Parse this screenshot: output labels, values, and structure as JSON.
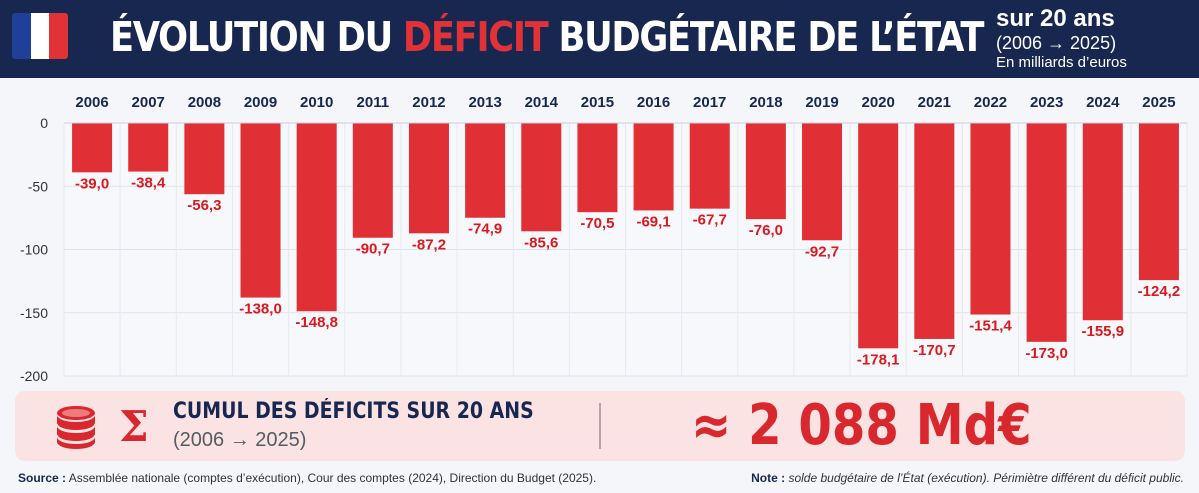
{
  "header": {
    "title_prefix": "ÉVOLUTION DU ",
    "title_highlight": "DÉFICIT",
    "title_suffix": " BUDGÉTAIRE DE L’ÉTAT",
    "side_line1": "sur 20 ans",
    "side_line2": "(2006 → 2025)",
    "side_line3": "En milliards d’euros",
    "flag_colors": [
      "#1f3f99",
      "#ffffff",
      "#e03237"
    ]
  },
  "chart_data": {
    "type": "bar",
    "categories": [
      "2006",
      "2007",
      "2008",
      "2009",
      "2010",
      "2011",
      "2012",
      "2013",
      "2014",
      "2015",
      "2016",
      "2017",
      "2018",
      "2019",
      "2020",
      "2021",
      "2022",
      "2023",
      "2024",
      "2025"
    ],
    "values": [
      -39.0,
      -38.4,
      -56.3,
      -138.0,
      -148.8,
      -90.7,
      -87.2,
      -74.9,
      -85.6,
      -70.5,
      -69.1,
      -67.7,
      -76.0,
      -92.7,
      -178.1,
      -170.7,
      -151.4,
      -173.0,
      -155.9,
      -124.2
    ],
    "data_labels": [
      "-39,0",
      "-38,4",
      "-56,3",
      "-138,0",
      "-148,8",
      "-90,7",
      "-87,2",
      "-74,9",
      "-85,6",
      "-70,5",
      "-69,1",
      "-67,7",
      "-76,0",
      "-92,7",
      "-178,1",
      "-170,7",
      "-151,4",
      "-173,0",
      "-155,9",
      "-124,2"
    ],
    "y_ticks": [
      0,
      -50,
      -100,
      -150,
      -200
    ],
    "y_tick_labels": [
      "0",
      "-50",
      "-100",
      "-150",
      "-200"
    ],
    "ylim": [
      -200,
      0
    ],
    "x_axis_position": "top",
    "grid": true,
    "bar_color": "#e13035",
    "label_color": "#d9191f"
  },
  "cumul": {
    "title": "CUMUL DES DÉFICITS SUR 20 ANS",
    "period": "(2006 → 2025)",
    "total": "≈ 2 088 Md€",
    "icons": [
      "coins-stack-icon",
      "sigma-icon"
    ]
  },
  "footer": {
    "source_label": "Source :",
    "source_text": " Assemblée nationale (comptes d’exécution), Cour des comptes (2024), Direction du Budget (2025).",
    "note_label": "Note :",
    "note_text": " solde budgétaire de l’État (exécution). Périmiètre différent du déficit public."
  }
}
